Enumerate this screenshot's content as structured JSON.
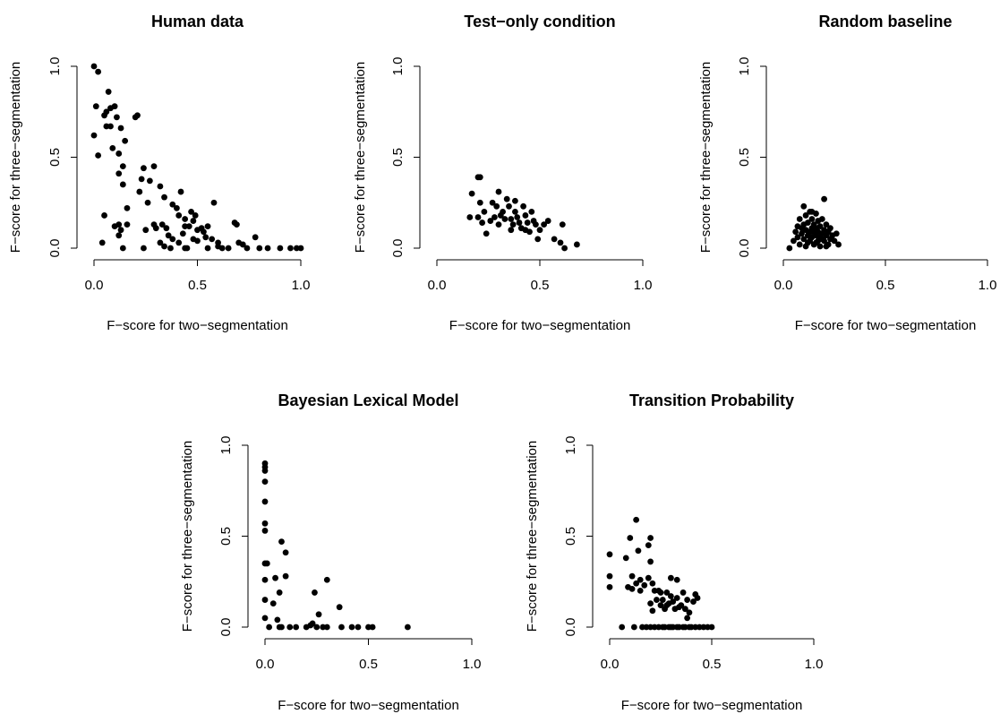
{
  "chart_data": [
    {
      "type": "scatter",
      "title": "Human data",
      "xlabel": "F−score for two−segmentation",
      "ylabel": "F−score for three−segmentation",
      "xlim": [
        0,
        1
      ],
      "ylim": [
        0,
        1
      ],
      "xticks": [
        "0.0",
        "0.5",
        "1.0"
      ],
      "yticks": [
        "0.0",
        "0.5",
        "1.0"
      ],
      "grid": false,
      "legend": "none",
      "point_color": "#000000",
      "points": [
        [
          0.0,
          1.0
        ],
        [
          0.02,
          0.97
        ],
        [
          0.01,
          0.78
        ],
        [
          0.0,
          0.62
        ],
        [
          0.02,
          0.51
        ],
        [
          0.05,
          0.73
        ],
        [
          0.06,
          0.75
        ],
        [
          0.07,
          0.86
        ],
        [
          0.08,
          0.77
        ],
        [
          0.06,
          0.67
        ],
        [
          0.08,
          0.67
        ],
        [
          0.1,
          0.78
        ],
        [
          0.11,
          0.72
        ],
        [
          0.13,
          0.66
        ],
        [
          0.09,
          0.55
        ],
        [
          0.12,
          0.52
        ],
        [
          0.15,
          0.59
        ],
        [
          0.14,
          0.45
        ],
        [
          0.12,
          0.41
        ],
        [
          0.14,
          0.35
        ],
        [
          0.2,
          0.72
        ],
        [
          0.21,
          0.73
        ],
        [
          0.16,
          0.22
        ],
        [
          0.05,
          0.18
        ],
        [
          0.04,
          0.03
        ],
        [
          0.1,
          0.12
        ],
        [
          0.12,
          0.13
        ],
        [
          0.13,
          0.1
        ],
        [
          0.12,
          0.07
        ],
        [
          0.16,
          0.13
        ],
        [
          0.14,
          0.0
        ],
        [
          0.22,
          0.31
        ],
        [
          0.23,
          0.38
        ],
        [
          0.24,
          0.44
        ],
        [
          0.27,
          0.37
        ],
        [
          0.29,
          0.45
        ],
        [
          0.32,
          0.34
        ],
        [
          0.34,
          0.28
        ],
        [
          0.26,
          0.25
        ],
        [
          0.25,
          0.1
        ],
        [
          0.24,
          0.0
        ],
        [
          0.29,
          0.13
        ],
        [
          0.3,
          0.11
        ],
        [
          0.33,
          0.13
        ],
        [
          0.35,
          0.11
        ],
        [
          0.36,
          0.07
        ],
        [
          0.34,
          0.01
        ],
        [
          0.37,
          0.0
        ],
        [
          0.38,
          0.24
        ],
        [
          0.4,
          0.22
        ],
        [
          0.42,
          0.31
        ],
        [
          0.41,
          0.18
        ],
        [
          0.44,
          0.16
        ],
        [
          0.44,
          0.12
        ],
        [
          0.43,
          0.08
        ],
        [
          0.45,
          0.0
        ],
        [
          0.47,
          0.2
        ],
        [
          0.48,
          0.15
        ],
        [
          0.49,
          0.18
        ],
        [
          0.46,
          0.12
        ],
        [
          0.5,
          0.1
        ],
        [
          0.48,
          0.05
        ],
        [
          0.5,
          0.04
        ],
        [
          0.52,
          0.11
        ],
        [
          0.53,
          0.09
        ],
        [
          0.55,
          0.12
        ],
        [
          0.54,
          0.06
        ],
        [
          0.57,
          0.05
        ],
        [
          0.58,
          0.25
        ],
        [
          0.6,
          0.03
        ],
        [
          0.62,
          0.0
        ],
        [
          0.65,
          0.0
        ],
        [
          0.68,
          0.14
        ],
        [
          0.69,
          0.13
        ],
        [
          0.7,
          0.03
        ],
        [
          0.72,
          0.02
        ],
        [
          0.74,
          0.0
        ],
        [
          0.78,
          0.06
        ],
        [
          0.8,
          0.0
        ],
        [
          0.84,
          0.0
        ],
        [
          0.9,
          0.0
        ],
        [
          0.95,
          0.0
        ],
        [
          0.98,
          0.0
        ],
        [
          1.0,
          0.0
        ],
        [
          0.44,
          0.0
        ],
        [
          0.41,
          0.03
        ],
        [
          0.32,
          0.03
        ],
        [
          0.55,
          0.0
        ],
        [
          0.6,
          0.01
        ],
        [
          0.38,
          0.05
        ]
      ]
    },
    {
      "type": "scatter",
      "title": "Test−only condition",
      "xlabel": "F−score for two−segmentation",
      "ylabel": "F−score for three−segmentation",
      "xlim": [
        0,
        1
      ],
      "ylim": [
        0,
        1
      ],
      "xticks": [
        "0.0",
        "0.5",
        "1.0"
      ],
      "yticks": [
        "0.0",
        "0.5",
        "1.0"
      ],
      "grid": false,
      "legend": "none",
      "point_color": "#000000",
      "points": [
        [
          0.2,
          0.39
        ],
        [
          0.21,
          0.39
        ],
        [
          0.17,
          0.3
        ],
        [
          0.16,
          0.17
        ],
        [
          0.2,
          0.17
        ],
        [
          0.21,
          0.25
        ],
        [
          0.23,
          0.2
        ],
        [
          0.22,
          0.14
        ],
        [
          0.24,
          0.08
        ],
        [
          0.27,
          0.25
        ],
        [
          0.29,
          0.23
        ],
        [
          0.3,
          0.31
        ],
        [
          0.28,
          0.17
        ],
        [
          0.3,
          0.13
        ],
        [
          0.31,
          0.18
        ],
        [
          0.32,
          0.2
        ],
        [
          0.34,
          0.27
        ],
        [
          0.35,
          0.23
        ],
        [
          0.36,
          0.16
        ],
        [
          0.37,
          0.13
        ],
        [
          0.38,
          0.26
        ],
        [
          0.38,
          0.2
        ],
        [
          0.39,
          0.17
        ],
        [
          0.4,
          0.14
        ],
        [
          0.41,
          0.11
        ],
        [
          0.42,
          0.23
        ],
        [
          0.43,
          0.18
        ],
        [
          0.44,
          0.14
        ],
        [
          0.45,
          0.09
        ],
        [
          0.46,
          0.2
        ],
        [
          0.47,
          0.15
        ],
        [
          0.48,
          0.13
        ],
        [
          0.49,
          0.05
        ],
        [
          0.5,
          0.1
        ],
        [
          0.52,
          0.13
        ],
        [
          0.54,
          0.15
        ],
        [
          0.57,
          0.05
        ],
        [
          0.6,
          0.03
        ],
        [
          0.61,
          0.13
        ],
        [
          0.62,
          0.0
        ],
        [
          0.68,
          0.02
        ],
        [
          0.26,
          0.15
        ],
        [
          0.33,
          0.16
        ],
        [
          0.43,
          0.1
        ],
        [
          0.36,
          0.1
        ]
      ]
    },
    {
      "type": "scatter",
      "title": "Random baseline",
      "xlabel": "F−score for two−segmentation",
      "ylabel": "F−score for three−segmentation",
      "xlim": [
        0,
        1
      ],
      "ylim": [
        0,
        1
      ],
      "xticks": [
        "0.0",
        "0.5",
        "1.0"
      ],
      "yticks": [
        "0.0",
        "0.5",
        "1.0"
      ],
      "grid": false,
      "legend": "none",
      "point_color": "#000000",
      "points": [
        [
          0.03,
          0.0
        ],
        [
          0.05,
          0.04
        ],
        [
          0.06,
          0.09
        ],
        [
          0.07,
          0.12
        ],
        [
          0.07,
          0.06
        ],
        [
          0.08,
          0.16
        ],
        [
          0.08,
          0.02
        ],
        [
          0.09,
          0.08
        ],
        [
          0.1,
          0.23
        ],
        [
          0.1,
          0.13
        ],
        [
          0.1,
          0.05
        ],
        [
          0.11,
          0.18
        ],
        [
          0.11,
          0.1
        ],
        [
          0.11,
          0.01
        ],
        [
          0.12,
          0.07
        ],
        [
          0.12,
          0.14
        ],
        [
          0.13,
          0.2
        ],
        [
          0.13,
          0.04
        ],
        [
          0.14,
          0.11
        ],
        [
          0.14,
          0.16
        ],
        [
          0.14,
          0.06
        ],
        [
          0.15,
          0.02
        ],
        [
          0.15,
          0.09
        ],
        [
          0.15,
          0.13
        ],
        [
          0.16,
          0.19
        ],
        [
          0.16,
          0.07
        ],
        [
          0.16,
          0.11
        ],
        [
          0.17,
          0.04
        ],
        [
          0.17,
          0.15
        ],
        [
          0.17,
          0.09
        ],
        [
          0.18,
          0.12
        ],
        [
          0.18,
          0.06
        ],
        [
          0.18,
          0.01
        ],
        [
          0.19,
          0.08
        ],
        [
          0.19,
          0.16
        ],
        [
          0.2,
          0.27
        ],
        [
          0.2,
          0.1
        ],
        [
          0.2,
          0.04
        ],
        [
          0.21,
          0.13
        ],
        [
          0.21,
          0.07
        ],
        [
          0.22,
          0.09
        ],
        [
          0.22,
          0.02
        ],
        [
          0.23,
          0.05
        ],
        [
          0.23,
          0.11
        ],
        [
          0.24,
          0.07
        ],
        [
          0.25,
          0.04
        ],
        [
          0.26,
          0.08
        ],
        [
          0.27,
          0.02
        ],
        [
          0.12,
          0.03
        ],
        [
          0.13,
          0.09
        ],
        [
          0.09,
          0.11
        ],
        [
          0.14,
          0.2
        ],
        [
          0.16,
          0.03
        ],
        [
          0.19,
          0.05
        ],
        [
          0.21,
          0.01
        ]
      ]
    },
    {
      "type": "scatter",
      "title": "Bayesian Lexical Model",
      "xlabel": "F−score for two−segmentation",
      "ylabel": "F−score for three−segmentation",
      "xlim": [
        0,
        1
      ],
      "ylim": [
        0,
        1
      ],
      "xticks": [
        "0.0",
        "0.5",
        "1.0"
      ],
      "yticks": [
        "0.0",
        "0.5",
        "1.0"
      ],
      "grid": false,
      "legend": "none",
      "point_color": "#000000",
      "points": [
        [
          0.0,
          0.9
        ],
        [
          0.0,
          0.88
        ],
        [
          0.0,
          0.86
        ],
        [
          0.0,
          0.8
        ],
        [
          0.0,
          0.69
        ],
        [
          0.0,
          0.57
        ],
        [
          0.0,
          0.53
        ],
        [
          0.0,
          0.35
        ],
        [
          0.01,
          0.35
        ],
        [
          0.0,
          0.26
        ],
        [
          0.0,
          0.15
        ],
        [
          0.0,
          0.05
        ],
        [
          0.02,
          0.0
        ],
        [
          0.04,
          0.13
        ],
        [
          0.05,
          0.27
        ],
        [
          0.06,
          0.04
        ],
        [
          0.07,
          0.19
        ],
        [
          0.07,
          0.0
        ],
        [
          0.08,
          0.47
        ],
        [
          0.1,
          0.41
        ],
        [
          0.1,
          0.28
        ],
        [
          0.12,
          0.0
        ],
        [
          0.15,
          0.0
        ],
        [
          0.2,
          0.0
        ],
        [
          0.22,
          0.01
        ],
        [
          0.23,
          0.02
        ],
        [
          0.24,
          0.19
        ],
        [
          0.25,
          0.0
        ],
        [
          0.26,
          0.07
        ],
        [
          0.28,
          0.0
        ],
        [
          0.3,
          0.26
        ],
        [
          0.3,
          0.0
        ],
        [
          0.36,
          0.11
        ],
        [
          0.37,
          0.0
        ],
        [
          0.42,
          0.0
        ],
        [
          0.45,
          0.0
        ],
        [
          0.5,
          0.0
        ],
        [
          0.52,
          0.0
        ],
        [
          0.69,
          0.0
        ],
        [
          0.08,
          0.0
        ]
      ]
    },
    {
      "type": "scatter",
      "title": "Transition Probability",
      "xlabel": "F−score for two−segmentation",
      "ylabel": "F−score for three−segmentation",
      "xlim": [
        0,
        1
      ],
      "ylim": [
        0,
        1
      ],
      "xticks": [
        "0.0",
        "0.5",
        "1.0"
      ],
      "yticks": [
        "0.0",
        "0.5",
        "1.0"
      ],
      "grid": false,
      "legend": "none",
      "point_color": "#000000",
      "points": [
        [
          0.0,
          0.4
        ],
        [
          0.0,
          0.28
        ],
        [
          0.0,
          0.22
        ],
        [
          0.06,
          0.0
        ],
        [
          0.08,
          0.38
        ],
        [
          0.09,
          0.22
        ],
        [
          0.1,
          0.49
        ],
        [
          0.11,
          0.28
        ],
        [
          0.11,
          0.21
        ],
        [
          0.12,
          0.0
        ],
        [
          0.13,
          0.59
        ],
        [
          0.14,
          0.42
        ],
        [
          0.13,
          0.24
        ],
        [
          0.15,
          0.26
        ],
        [
          0.15,
          0.2
        ],
        [
          0.17,
          0.23
        ],
        [
          0.16,
          0.0
        ],
        [
          0.19,
          0.45
        ],
        [
          0.2,
          0.49
        ],
        [
          0.2,
          0.36
        ],
        [
          0.19,
          0.27
        ],
        [
          0.21,
          0.24
        ],
        [
          0.2,
          0.13
        ],
        [
          0.21,
          0.09
        ],
        [
          0.22,
          0.2
        ],
        [
          0.23,
          0.15
        ],
        [
          0.24,
          0.0
        ],
        [
          0.25,
          0.12
        ],
        [
          0.25,
          0.19
        ],
        [
          0.26,
          0.15
        ],
        [
          0.27,
          0.0
        ],
        [
          0.28,
          0.19
        ],
        [
          0.29,
          0.13
        ],
        [
          0.29,
          0.0
        ],
        [
          0.3,
          0.27
        ],
        [
          0.31,
          0.14
        ],
        [
          0.31,
          0.0
        ],
        [
          0.32,
          0.1
        ],
        [
          0.33,
          0.26
        ],
        [
          0.33,
          0.16
        ],
        [
          0.34,
          0.0
        ],
        [
          0.35,
          0.12
        ],
        [
          0.36,
          0.19
        ],
        [
          0.37,
          0.0
        ],
        [
          0.37,
          0.1
        ],
        [
          0.38,
          0.15
        ],
        [
          0.39,
          0.08
        ],
        [
          0.4,
          0.0
        ],
        [
          0.41,
          0.14
        ],
        [
          0.42,
          0.18
        ],
        [
          0.43,
          0.16
        ],
        [
          0.44,
          0.0
        ],
        [
          0.46,
          0.0
        ],
        [
          0.48,
          0.0
        ],
        [
          0.5,
          0.0
        ],
        [
          0.18,
          0.0
        ],
        [
          0.2,
          0.0
        ],
        [
          0.22,
          0.0
        ],
        [
          0.26,
          0.0
        ],
        [
          0.3,
          0.0
        ],
        [
          0.33,
          0.0
        ],
        [
          0.36,
          0.0
        ],
        [
          0.39,
          0.0
        ],
        [
          0.42,
          0.0
        ],
        [
          0.27,
          0.1
        ],
        [
          0.24,
          0.2
        ],
        [
          0.34,
          0.11
        ],
        [
          0.38,
          0.05
        ],
        [
          0.28,
          0.12
        ],
        [
          0.3,
          0.17
        ]
      ]
    }
  ]
}
